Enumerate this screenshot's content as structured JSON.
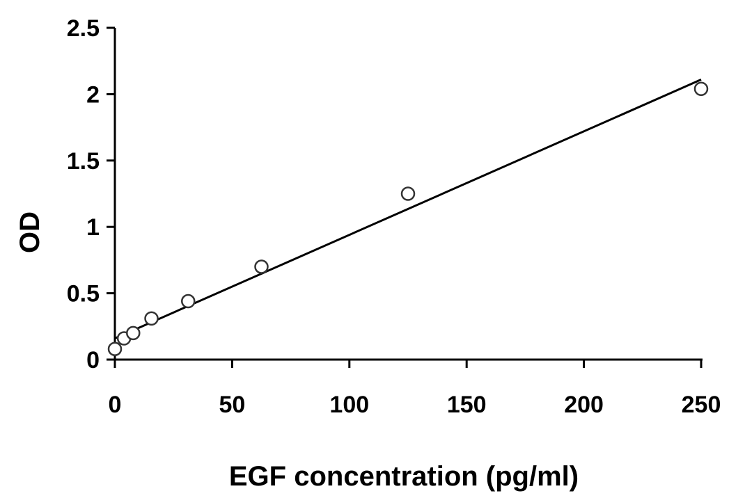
{
  "chart_data": {
    "type": "scatter",
    "title": "",
    "xlabel": "EGF concentration (pg/ml)",
    "ylabel": "OD",
    "xlim": [
      0,
      250
    ],
    "ylim": [
      0,
      2.5
    ],
    "xticks": [
      0,
      50,
      100,
      150,
      200,
      250
    ],
    "xtick_labels": [
      "0",
      "50",
      "100",
      "150",
      "200",
      "250"
    ],
    "yticks": [
      0,
      0.5,
      1,
      1.5,
      2,
      2.5
    ],
    "ytick_labels": [
      "0",
      "0.5",
      "1",
      "1.5",
      "2",
      "2.5"
    ],
    "grid": false,
    "legend": "none",
    "series": [
      {
        "points": [
          {
            "x": 0,
            "y": 0.08
          },
          {
            "x": 3.9,
            "y": 0.16
          },
          {
            "x": 7.8,
            "y": 0.2
          },
          {
            "x": 15.6,
            "y": 0.31
          },
          {
            "x": 31.25,
            "y": 0.44
          },
          {
            "x": 62.5,
            "y": 0.7
          },
          {
            "x": 125,
            "y": 1.25
          },
          {
            "x": 250,
            "y": 2.04
          }
        ],
        "marker": "open-circle",
        "marker_color": "#333333"
      }
    ],
    "trendline": {
      "type": "linear",
      "x_start": 0,
      "y_start": 0.16,
      "x_end": 250,
      "y_end": 2.11,
      "color": "#000000"
    }
  }
}
